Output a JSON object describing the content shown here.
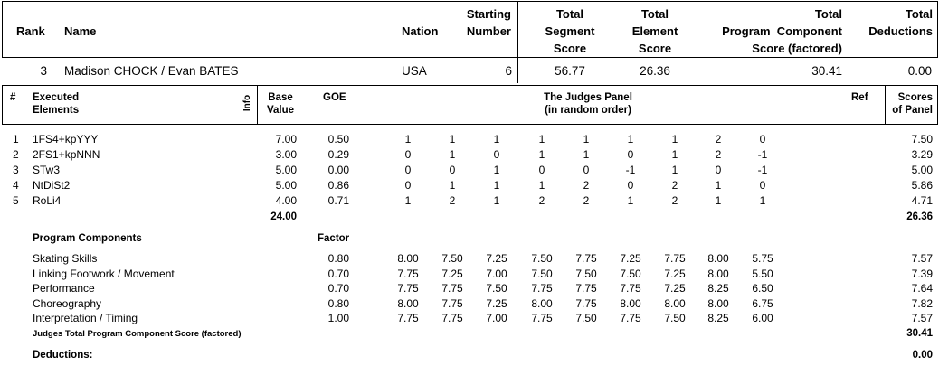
{
  "header": {
    "rank_label": "Rank",
    "name_label": "Name",
    "nation_label": "Nation",
    "starting_number_label": [
      "Starting",
      "Number"
    ],
    "tss_label": [
      "Total",
      "Segment",
      "Score"
    ],
    "tes_label": [
      "Total",
      "Element",
      "Score"
    ],
    "pcs_label": [
      "Total",
      "Program  Component",
      "Score (factored)"
    ],
    "ded_label": [
      "Total",
      "Deductions"
    ]
  },
  "skater": {
    "rank": "3",
    "name": "Madison CHOCK / Evan BATES",
    "nation": "USA",
    "starting_number": "6",
    "total_segment_score": "56.77",
    "total_element_score": "26.36",
    "total_pcs": "30.41",
    "total_deductions": "0.00"
  },
  "elements_header": {
    "num": "#",
    "executed": [
      "Executed",
      "Elements"
    ],
    "info": "Info",
    "base_value": [
      "Base",
      "Value"
    ],
    "goe": "GOE",
    "judges_panel": [
      "The Judges Panel",
      "(in random order)"
    ],
    "ref": "Ref",
    "scores_of_panel": [
      "Scores",
      "of Panel"
    ]
  },
  "elements": [
    {
      "num": "1",
      "name": "1FS4+kpYYY",
      "base": "7.00",
      "goe": "0.50",
      "judges": [
        "1",
        "1",
        "1",
        "1",
        "1",
        "1",
        "1",
        "2",
        "0"
      ],
      "score": "7.50"
    },
    {
      "num": "2",
      "name": "2FS1+kpNNN",
      "base": "3.00",
      "goe": "0.29",
      "judges": [
        "0",
        "1",
        "0",
        "1",
        "1",
        "0",
        "1",
        "2",
        "-1"
      ],
      "score": "3.29"
    },
    {
      "num": "3",
      "name": "STw3",
      "base": "5.00",
      "goe": "0.00",
      "judges": [
        "0",
        "0",
        "1",
        "0",
        "0",
        "-1",
        "1",
        "0",
        "-1"
      ],
      "score": "5.00"
    },
    {
      "num": "4",
      "name": "NtDiSt2",
      "base": "5.00",
      "goe": "0.86",
      "judges": [
        "0",
        "1",
        "1",
        "1",
        "2",
        "0",
        "2",
        "1",
        "0"
      ],
      "score": "5.86"
    },
    {
      "num": "5",
      "name": "RoLi4",
      "base": "4.00",
      "goe": "0.71",
      "judges": [
        "1",
        "2",
        "1",
        "2",
        "2",
        "1",
        "2",
        "1",
        "1"
      ],
      "score": "4.71"
    }
  ],
  "elements_total": {
    "base": "24.00",
    "score": "26.36"
  },
  "program_components": {
    "title": "Program Components",
    "factor_label": "Factor",
    "rows": [
      {
        "name": "Skating Skills",
        "factor": "0.80",
        "judges": [
          "8.00",
          "7.50",
          "7.25",
          "7.50",
          "7.75",
          "7.25",
          "7.75",
          "8.00",
          "5.75"
        ],
        "score": "7.57"
      },
      {
        "name": "Linking Footwork / Movement",
        "factor": "0.70",
        "judges": [
          "7.75",
          "7.25",
          "7.00",
          "7.50",
          "7.50",
          "7.50",
          "7.25",
          "8.00",
          "5.50"
        ],
        "score": "7.39"
      },
      {
        "name": "Performance",
        "factor": "0.70",
        "judges": [
          "7.75",
          "7.75",
          "7.50",
          "7.75",
          "7.75",
          "7.75",
          "7.25",
          "8.25",
          "6.50"
        ],
        "score": "7.64"
      },
      {
        "name": "Choreography",
        "factor": "0.80",
        "judges": [
          "8.00",
          "7.75",
          "7.25",
          "8.00",
          "7.75",
          "8.00",
          "8.00",
          "8.00",
          "6.75"
        ],
        "score": "7.82"
      },
      {
        "name": "Interpretation / Timing",
        "factor": "1.00",
        "judges": [
          "7.75",
          "7.75",
          "7.00",
          "7.75",
          "7.50",
          "7.75",
          "7.50",
          "8.25",
          "6.00"
        ],
        "score": "7.57"
      }
    ],
    "total_label": "Judges Total Program Component Score (factored)",
    "total_value": "30.41"
  },
  "deductions": {
    "label": "Deductions:",
    "value": "0.00"
  }
}
